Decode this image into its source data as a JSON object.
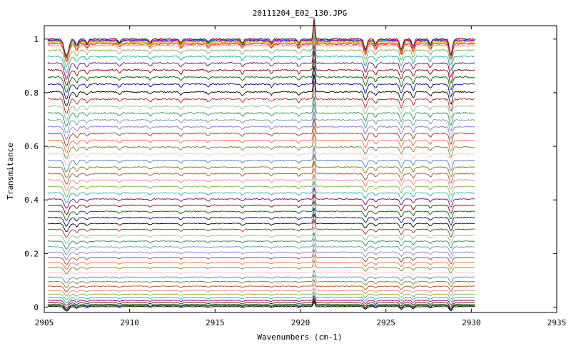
{
  "chart_data": {
    "type": "line",
    "title": "20111204_E02_130.JPG",
    "xlabel": "Wavenumbers (cm-1)",
    "ylabel": "Transmitance",
    "xlim": [
      2905,
      2935
    ],
    "ylim": [
      -0.02,
      1.05
    ],
    "x_data_range": [
      2905.2,
      2930.2
    ],
    "xticks": [
      2905,
      2910,
      2915,
      2920,
      2925,
      2930,
      2935
    ],
    "yticks": [
      0,
      0.2,
      0.4,
      0.6,
      0.8,
      1
    ],
    "xtick_labels": [
      "2905",
      "2910",
      "2915",
      "2920",
      "2925",
      "2930",
      "2935"
    ],
    "ytick_labels": [
      "0",
      "0.2",
      "0.4",
      "0.6",
      "0.8",
      "1"
    ],
    "grid": false,
    "legend": "none",
    "series_count": 48,
    "series_baselines": [
      0.002,
      0.006,
      0.01,
      0.016,
      0.025,
      0.035,
      0.048,
      0.062,
      0.078,
      0.095,
      0.112,
      0.13,
      0.148,
      0.166,
      0.185,
      0.205,
      0.225,
      0.246,
      0.267,
      0.29,
      0.312,
      0.334,
      0.357,
      0.38,
      0.403,
      0.426,
      0.45,
      0.474,
      0.498,
      0.522,
      0.547,
      0.572,
      0.597,
      0.622,
      0.648,
      0.673,
      0.698,
      0.724,
      0.75,
      0.776,
      0.803,
      0.832,
      0.858,
      0.884,
      0.91,
      0.935,
      0.958,
      0.976
    ],
    "top_series_baselines": [
      0.982,
      0.986,
      0.99,
      0.993,
      0.995,
      0.997,
      0.999,
      1.0
    ],
    "absorption_features": [
      {
        "x": 2906.3,
        "depth": 0.05,
        "width": 0.18
      },
      {
        "x": 2906.9,
        "depth": 0.018,
        "width": 0.12
      },
      {
        "x": 2907.5,
        "depth": 0.012,
        "width": 0.1
      },
      {
        "x": 2909.4,
        "depth": 0.01,
        "width": 0.1
      },
      {
        "x": 2911.2,
        "depth": 0.009,
        "width": 0.1
      },
      {
        "x": 2913.0,
        "depth": 0.012,
        "width": 0.1
      },
      {
        "x": 2914.6,
        "depth": 0.009,
        "width": 0.1
      },
      {
        "x": 2916.6,
        "depth": 0.012,
        "width": 0.1
      },
      {
        "x": 2918.3,
        "depth": 0.01,
        "width": 0.1
      },
      {
        "x": 2919.9,
        "depth": 0.011,
        "width": 0.1
      },
      {
        "x": 2923.8,
        "depth": 0.03,
        "width": 0.12
      },
      {
        "x": 2924.4,
        "depth": 0.015,
        "width": 0.1
      },
      {
        "x": 2925.9,
        "depth": 0.03,
        "width": 0.12
      },
      {
        "x": 2926.6,
        "depth": 0.022,
        "width": 0.1
      },
      {
        "x": 2927.6,
        "depth": 0.015,
        "width": 0.1
      },
      {
        "x": 2928.8,
        "depth": 0.045,
        "width": 0.12
      }
    ],
    "emission_peak": {
      "x": 2920.8,
      "height": 0.06,
      "width": 0.07
    },
    "colors": [
      "#000000",
      "#000080",
      "#006400",
      "#7b0000",
      "#800080",
      "#20b2aa",
      "#7cb342",
      "#f08080",
      "#a0522d",
      "#808000",
      "#4682b4",
      "#ffc0cb",
      "#6b8e23",
      "#ff6347",
      "#8b4513",
      "#9370db",
      "#5f9ea0",
      "#2e8b57",
      "#8fbc8f",
      "#b22222"
    ],
    "top_colors": [
      "#ff0000",
      "#ff8c00",
      "#ffd700",
      "#228b22",
      "#0000ff",
      "#ff1493",
      "#00ced1",
      "#8b0000"
    ]
  }
}
